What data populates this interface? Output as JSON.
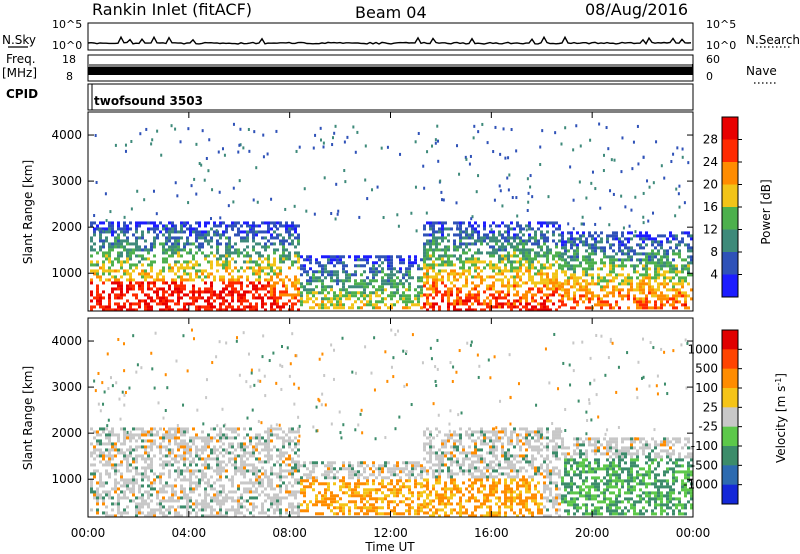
{
  "header": {
    "title": "Rankin Inlet (fitACF)",
    "beam": "Beam 04",
    "date": "08/Aug/2016"
  },
  "strips": {
    "nsky_label": "N.Sky",
    "nsearch_label": "N.Search",
    "nsky_ticks": [
      "10^5",
      "10^0"
    ],
    "nsearch_ticks": [
      "10^5",
      "10^0"
    ],
    "freq_label": "Freq.",
    "freq_unit": "[MHz]",
    "freq_ticks": [
      "18",
      "8"
    ],
    "nave_label": "Nave",
    "nave_ticks": [
      "60",
      "0"
    ],
    "cpid_label": "CPID",
    "cpid_value": "twofsound 3503"
  },
  "chart_data": [
    {
      "type": "heatmap",
      "panel": "power",
      "ylabel": "Slant Range [km]",
      "y_ticks": [
        "1000",
        "2000",
        "3000",
        "4000"
      ],
      "ylim": [
        180,
        4500
      ],
      "colorbar_label": "Power [dB]",
      "colorbar_ticks": [
        "4",
        "8",
        "12",
        "16",
        "20",
        "24",
        "28"
      ],
      "colors": [
        "#1c1cff",
        "#2f52b8",
        "#3e8a7a",
        "#4db04d",
        "#f2c418",
        "#ff8c00",
        "#ff2a00",
        "#e80000"
      ]
    },
    {
      "type": "heatmap",
      "panel": "velocity",
      "ylabel": "Slant Range [km]",
      "y_ticks": [
        "1000",
        "2000",
        "3000",
        "4000"
      ],
      "ylim": [
        180,
        4500
      ],
      "colorbar_label": "Velocity [m s^-1]",
      "colorbar_ticks": [
        "1000",
        "500",
        "100",
        "25",
        "-25",
        "-100",
        "-500",
        "-1000"
      ],
      "colors": [
        "#1428d8",
        "#2d6bb0",
        "#3c8c6a",
        "#5cc84a",
        "#c8c8c8",
        "#f5c418",
        "#ff8c00",
        "#ff4400",
        "#e00000"
      ]
    }
  ],
  "x_axis": {
    "label": "Time UT",
    "ticks": [
      "00:00",
      "04:00",
      "08:00",
      "12:00",
      "16:00",
      "20:00",
      "00:00"
    ]
  }
}
